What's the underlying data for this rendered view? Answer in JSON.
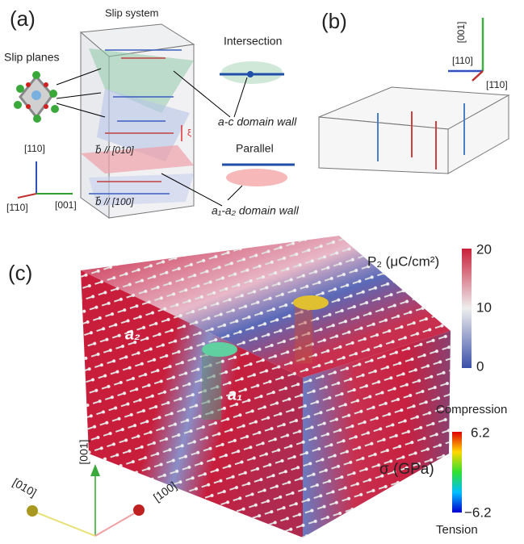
{
  "panel_a": {
    "label": "(a)",
    "title": "Slip system",
    "slip_planes": "Slip planes",
    "intersection": "Intersection",
    "parallel": "Parallel",
    "ac_wall": "a-c domain wall",
    "a1a2_wall": "a₁-a₂ domain wall",
    "burgers": [
      "b⃗ // [010]",
      "b⃗ // [100]"
    ],
    "xi": "ξ",
    "axes": [
      "[110]",
      "[1̄10]",
      "[001]"
    ]
  },
  "panel_b": {
    "label": "(b)",
    "axes": [
      "[001]",
      "[110]",
      "[1̄10]"
    ]
  },
  "panel_c": {
    "label": "(c)",
    "domains": [
      "a₂",
      "a₁"
    ],
    "axes": [
      "[001]",
      "[010]",
      "[100]"
    ],
    "colorbar_p": {
      "title": "P₂ (μC/cm²)",
      "ticks": [
        20,
        10,
        0
      ]
    },
    "colorbar_sigma": {
      "title": "σ (GPa)",
      "top": "Compression",
      "bottom": "Tension",
      "ticks": [
        "6.2",
        "−6.2"
      ]
    }
  }
}
